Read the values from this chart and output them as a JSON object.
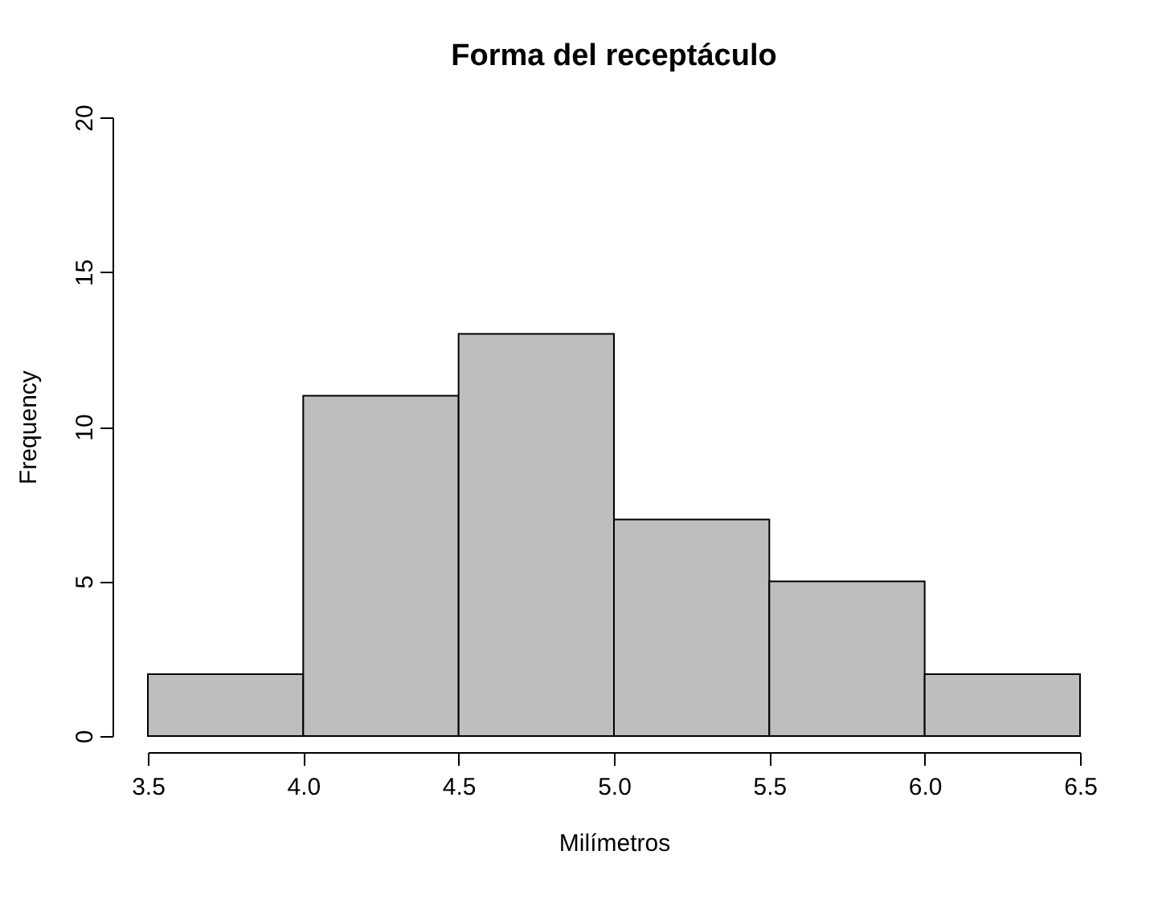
{
  "chart_data": {
    "type": "histogram",
    "title": "Forma del receptáculo",
    "xlabel": "Milímetros",
    "ylabel": "Frequency",
    "bins": [
      3.5,
      4.0,
      4.5,
      5.0,
      5.5,
      6.0,
      6.5
    ],
    "values": [
      2,
      11,
      13,
      7,
      5,
      2
    ],
    "color": "#bebebe",
    "xlim": [
      3.5,
      6.5
    ],
    "xticks": [
      {
        "value": 3.5,
        "label": "3.5"
      },
      {
        "value": 4,
        "label": "4.0"
      },
      {
        "value": 4.5,
        "label": "4.5"
      },
      {
        "value": 5,
        "label": "5.0"
      },
      {
        "value": 5.5,
        "label": "5.5"
      },
      {
        "value": 6,
        "label": "6.0"
      },
      {
        "value": 6.5,
        "label": "6.5"
      }
    ],
    "ylim": [
      0,
      20
    ],
    "yticks": [
      0,
      5,
      10,
      15,
      20
    ],
    "grid": false
  }
}
